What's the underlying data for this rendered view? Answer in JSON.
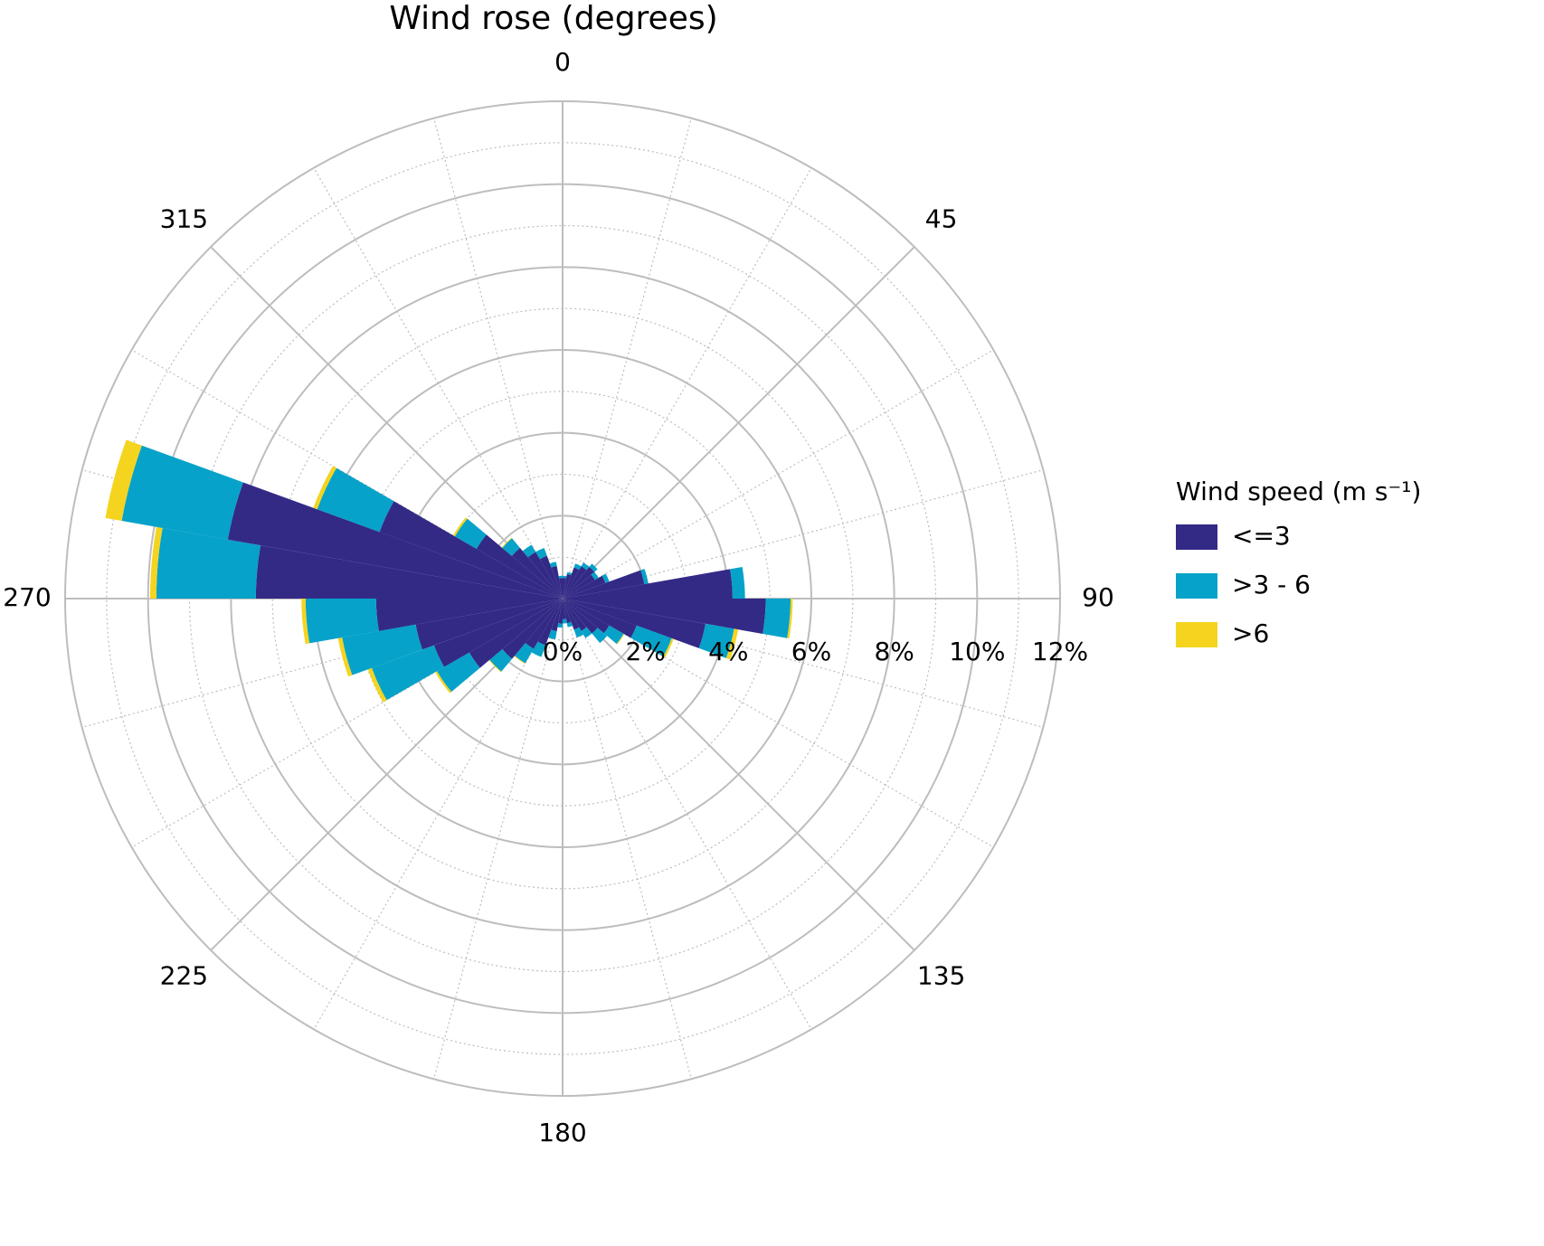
{
  "chart_data": {
    "type": "windrose",
    "title": "Wind rose (degrees)",
    "legend_title": "Wind speed (m s⁻¹)",
    "x": [
      5,
      15,
      25,
      35,
      45,
      55,
      65,
      75,
      85,
      95,
      105,
      115,
      125,
      135,
      145,
      155,
      165,
      175,
      185,
      195,
      205,
      215,
      225,
      235,
      245,
      255,
      265,
      275,
      285,
      295,
      305,
      315,
      325,
      335,
      345,
      355
    ],
    "xticks": [
      0,
      45,
      90,
      135,
      180,
      225,
      270,
      315
    ],
    "ylim": [
      0,
      12
    ],
    "yticks": [
      {
        "value": 0,
        "label": "0%"
      },
      {
        "value": 2,
        "label": "2%"
      },
      {
        "value": 4,
        "label": "4%"
      },
      {
        "value": 6,
        "label": "6%"
      },
      {
        "value": 8,
        "label": "8%"
      },
      {
        "value": 10,
        "label": "10%"
      },
      {
        "value": 12,
        "label": "12%"
      }
    ],
    "series": [
      {
        "name": "<=3",
        "color": "#332a86",
        "values": [
          0.5,
          0.6,
          0.8,
          0.9,
          1.0,
          0.9,
          1.1,
          2.0,
          4.1,
          4.9,
          3.5,
          1.9,
          1.3,
          1.1,
          0.9,
          0.8,
          0.6,
          0.5,
          0.6,
          0.8,
          1.2,
          1.4,
          1.9,
          2.6,
          3.3,
          3.6,
          4.5,
          7.4,
          8.2,
          4.7,
          2.4,
          1.6,
          1.3,
          1.1,
          0.8,
          0.5
        ]
      },
      {
        "name": ">3 - 6",
        "color": "#06a2c9",
        "values": [
          0.05,
          0.05,
          0.1,
          0.1,
          0.1,
          0.1,
          0.1,
          0.1,
          0.3,
          0.6,
          0.7,
          0.9,
          0.4,
          0.3,
          0.2,
          0.2,
          0.1,
          0.1,
          0.1,
          0.2,
          0.3,
          0.4,
          0.4,
          0.9,
          1.6,
          1.8,
          1.7,
          2.4,
          2.6,
          1.6,
          0.6,
          0.3,
          0.2,
          0.2,
          0.1,
          0.05
        ]
      },
      {
        "name": ">6",
        "color": "#f4d41f",
        "values": [
          0,
          0,
          0,
          0,
          0,
          0,
          0,
          0,
          0,
          0.05,
          0.1,
          0.05,
          0.02,
          0,
          0,
          0,
          0,
          0,
          0,
          0,
          0,
          0.02,
          0.02,
          0.05,
          0.1,
          0.1,
          0.1,
          0.15,
          0.4,
          0.1,
          0.05,
          0.02,
          0,
          0,
          0,
          0
        ]
      }
    ]
  }
}
